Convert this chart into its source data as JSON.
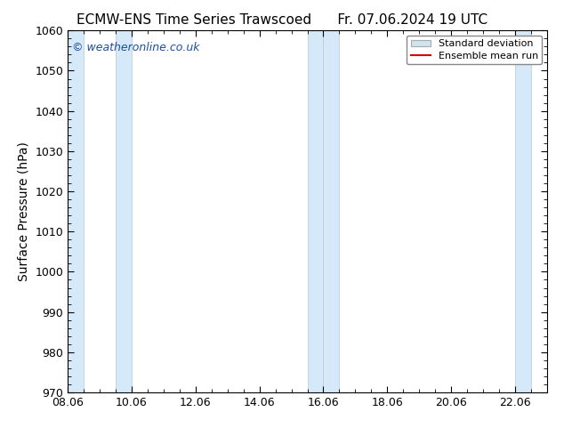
{
  "title_left": "ECMW-ENS Time Series Trawscoed",
  "title_right": "Fr. 07.06.2024 19 UTC",
  "ylabel": "Surface Pressure (hPa)",
  "ylim": [
    970,
    1060
  ],
  "yticks": [
    970,
    980,
    990,
    1000,
    1010,
    1020,
    1030,
    1040,
    1050,
    1060
  ],
  "xlim_start": 8.06,
  "xlim_end": 23.06,
  "xtick_labels": [
    "08.06",
    "10.06",
    "12.06",
    "14.06",
    "16.06",
    "18.06",
    "20.06",
    "22.06"
  ],
  "xtick_positions": [
    8.06,
    10.06,
    12.06,
    14.06,
    16.06,
    18.06,
    20.06,
    22.06
  ],
  "shaded_bands": [
    {
      "x_start": 8.06,
      "x_end": 8.56
    },
    {
      "x_start": 9.56,
      "x_end": 10.06
    },
    {
      "x_start": 15.56,
      "x_end": 16.06
    },
    {
      "x_start": 16.06,
      "x_end": 16.56
    },
    {
      "x_start": 22.06,
      "x_end": 22.56
    }
  ],
  "band_color": "#d6e9f8",
  "band_edge_color": "#b0cce0",
  "watermark_text": "© weatheronline.co.uk",
  "watermark_color": "#1a4fa0",
  "legend_std_label": "Standard deviation",
  "legend_mean_label": "Ensemble mean run",
  "legend_std_facecolor": "#d0e4f0",
  "legend_std_edgecolor": "#aaaaaa",
  "legend_mean_color": "#dd0000",
  "background_color": "#ffffff",
  "title_fontsize": 11,
  "label_fontsize": 10,
  "tick_fontsize": 9,
  "watermark_fontsize": 9,
  "legend_fontsize": 8
}
